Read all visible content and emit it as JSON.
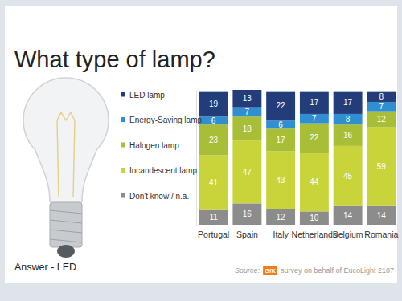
{
  "chart_data": {
    "type": "bar",
    "title": "What type of lamp?",
    "categories": [
      "Portugal",
      "Spain",
      "Italy",
      "Netherlands",
      "Belgium",
      "Romania"
    ],
    "series": [
      {
        "name": "LED lamp",
        "color": "#233d7b",
        "values": [
          19,
          13,
          22,
          17,
          17,
          8
        ]
      },
      {
        "name": "Energy-Saving lamp",
        "color": "#2f8fd1",
        "values": [
          6,
          7,
          6,
          7,
          8,
          7
        ]
      },
      {
        "name": "Halogen lamp",
        "color": "#a8be36",
        "values": [
          23,
          18,
          17,
          22,
          16,
          12
        ]
      },
      {
        "name": "Incandescent lamp",
        "color": "#c8d43a",
        "values": [
          41,
          47,
          43,
          44,
          45,
          59
        ]
      },
      {
        "name": "Don't know / n.a.",
        "color": "#8c8c8c",
        "values": [
          11,
          16,
          12,
          10,
          14,
          14
        ]
      }
    ],
    "ylim": [
      0,
      101
    ],
    "stacked": true,
    "data_labels": true,
    "tick_labels": "x",
    "grid": false,
    "legend": "left",
    "annotations": [
      "Answer - LED",
      "Source:",
      "GfK",
      "survey on behalf of EucoLight 2107"
    ]
  }
}
